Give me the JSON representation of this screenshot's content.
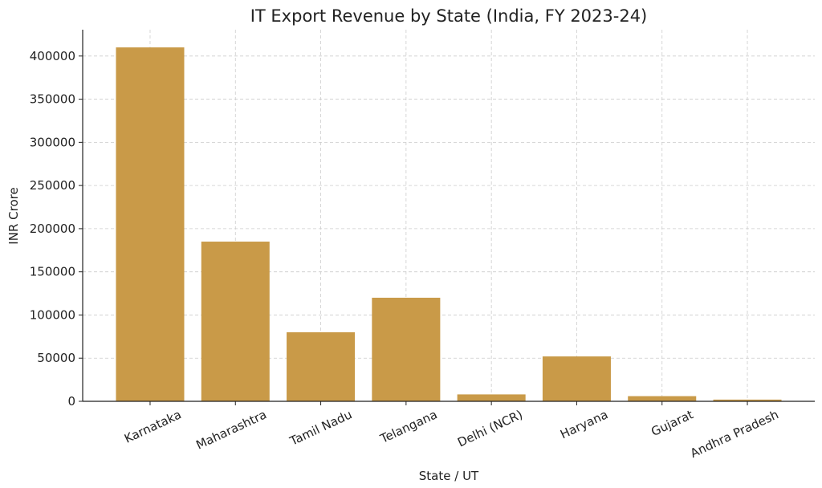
{
  "chart_data": {
    "type": "bar",
    "title": "IT Export Revenue by State (India, FY 2023-24)",
    "xlabel": "State / UT",
    "ylabel": "INR Crore",
    "categories": [
      "Karnataka",
      "Maharashtra",
      "Tamil Nadu",
      "Telangana",
      "Delhi (NCR)",
      "Haryana",
      "Gujarat",
      "Andhra Pradesh"
    ],
    "values": [
      410000,
      185000,
      80000,
      120000,
      8000,
      52000,
      6000,
      2000
    ],
    "ylim": [
      0,
      430500
    ],
    "yticks": [
      0,
      50000,
      100000,
      150000,
      200000,
      250000,
      300000,
      350000,
      400000
    ],
    "grid": true,
    "bar_color": "#c99a48",
    "xtick_rotation": -25
  }
}
